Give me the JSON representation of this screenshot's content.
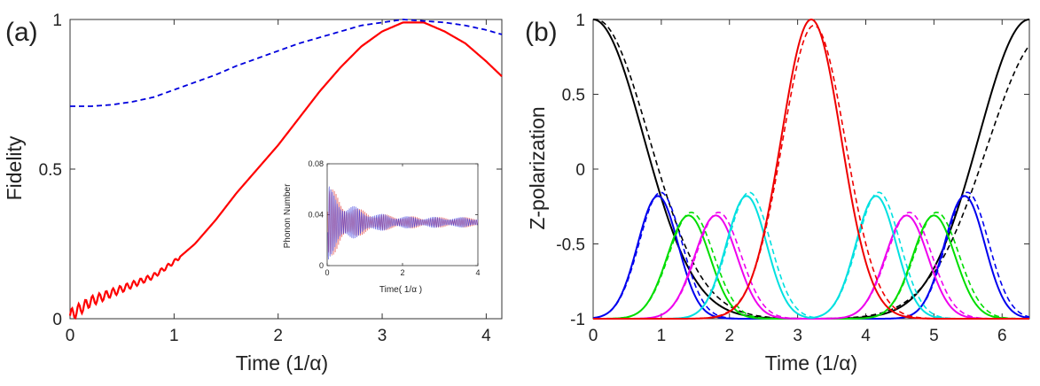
{
  "chart_data": [
    {
      "panel": "(a)",
      "type": "line",
      "xlabel": "Time (1/α)",
      "ylabel": "Fidelity",
      "xlim": [
        0,
        4.15
      ],
      "ylim": [
        0,
        1
      ],
      "xticks": [
        0,
        1,
        2,
        3,
        4
      ],
      "yticks": [
        0,
        0.5,
        1
      ],
      "xtick_labels": [
        "0",
        "1",
        "2",
        "3",
        "4"
      ],
      "ytick_labels": [
        "0",
        "0.5",
        "1"
      ],
      "series": [
        {
          "name": "solid",
          "color": "#ff0000",
          "style": "solid",
          "x": [
            0,
            0.2,
            0.4,
            0.6,
            0.8,
            1.0,
            1.2,
            1.4,
            1.6,
            1.8,
            2.0,
            2.2,
            2.4,
            2.6,
            2.8,
            3.0,
            3.2,
            3.3,
            3.4,
            3.6,
            3.8,
            4.0,
            4.15
          ],
          "y": [
            0.0,
            0.05,
            0.08,
            0.11,
            0.14,
            0.19,
            0.25,
            0.33,
            0.42,
            0.5,
            0.58,
            0.67,
            0.76,
            0.84,
            0.91,
            0.96,
            0.99,
            0.99,
            0.99,
            0.96,
            0.92,
            0.86,
            0.81
          ]
        },
        {
          "name": "dashed",
          "color": "#0000dd",
          "style": "dashed",
          "x": [
            0,
            0.2,
            0.4,
            0.6,
            0.8,
            1.0,
            1.2,
            1.4,
            1.6,
            1.8,
            2.0,
            2.2,
            2.4,
            2.6,
            2.8,
            3.0,
            3.2,
            3.4,
            3.6,
            3.8,
            4.0,
            4.15
          ],
          "y": [
            0.71,
            0.71,
            0.715,
            0.725,
            0.74,
            0.765,
            0.79,
            0.815,
            0.845,
            0.87,
            0.895,
            0.92,
            0.94,
            0.96,
            0.98,
            0.99,
            1.0,
            0.995,
            0.99,
            0.98,
            0.965,
            0.95
          ]
        }
      ],
      "inset": {
        "type": "line",
        "xlabel": "Time( 1/α )",
        "ylabel": "Phonon Number",
        "xlim": [
          0,
          4
        ],
        "ylim": [
          0,
          0.08
        ],
        "xticks": [
          0,
          2,
          4
        ],
        "yticks": [
          0,
          0.04,
          0.08
        ],
        "xtick_labels": [
          "0",
          "2",
          "4"
        ],
        "ytick_labels": [
          "0",
          "0.04",
          "0.08"
        ],
        "series": [
          {
            "name": "phonon-a",
            "color": "#dd3333",
            "style": "solid"
          },
          {
            "name": "phonon-b",
            "color": "#3333dd",
            "style": "solid"
          }
        ],
        "envelope": {
          "mean": 0.034,
          "start_amplitude": 0.032,
          "end_amplitude": 0.004
        }
      }
    },
    {
      "panel": "(b)",
      "type": "line",
      "xlabel": "Time (1/α)",
      "ylabel": "Z-polarization",
      "xlim": [
        0,
        6.4
      ],
      "ylim": [
        -1,
        1
      ],
      "xticks": [
        0,
        1,
        2,
        3,
        4,
        5,
        6
      ],
      "yticks": [
        -1,
        -0.5,
        0,
        0.5,
        1
      ],
      "xtick_labels": [
        "0",
        "1",
        "2",
        "3",
        "4",
        "5",
        "6"
      ],
      "ytick_labels": [
        "-1",
        "-0.5",
        "0",
        "0.5",
        "1"
      ],
      "series": [
        {
          "name": "black",
          "color": "#000000",
          "kind": "edge",
          "center": 0,
          "width": 1.05,
          "height": 2.0
        },
        {
          "name": "blue",
          "color": "#0000ee",
          "kind": "pair",
          "centers": [
            0.95,
            5.45
          ],
          "width": 0.42,
          "height": 0.82
        },
        {
          "name": "green",
          "color": "#00dd00",
          "kind": "pair",
          "centers": [
            1.4,
            5.0
          ],
          "width": 0.44,
          "height": 0.69
        },
        {
          "name": "magenta",
          "color": "#ee00ee",
          "kind": "pair",
          "centers": [
            1.8,
            4.6
          ],
          "width": 0.44,
          "height": 0.69
        },
        {
          "name": "cyan",
          "color": "#00e0e0",
          "kind": "pair",
          "centers": [
            2.25,
            4.15
          ],
          "width": 0.42,
          "height": 0.82
        },
        {
          "name": "red",
          "color": "#ee0000",
          "kind": "single",
          "centers": [
            3.2
          ],
          "width": 0.62,
          "height": 2.0
        }
      ]
    }
  ]
}
